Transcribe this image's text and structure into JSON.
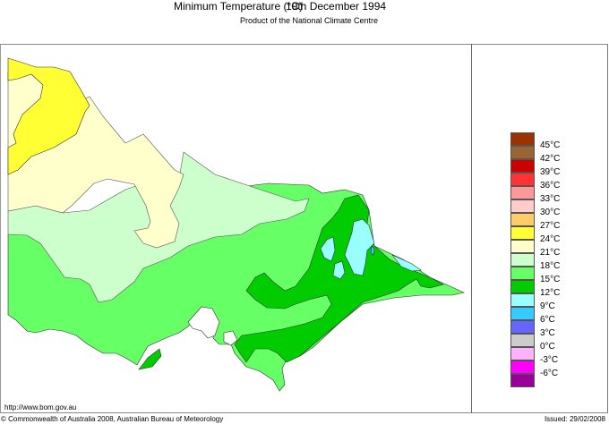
{
  "header": {
    "title": "Minimum Temperature (°C)",
    "date": "19th December 1994",
    "subtitle": "Product of the National Climate Centre"
  },
  "map": {
    "region": "Victoria, Australia",
    "background_color": "#ffffff",
    "zones": [
      {
        "label": "24-27°C",
        "color": "#ffff33"
      },
      {
        "label": "21-24°C",
        "color": "#ffffcc"
      },
      {
        "label": "18-21°C",
        "color": "#ccffcc"
      },
      {
        "label": "15-18°C",
        "color": "#66ff66"
      },
      {
        "label": "12-15°C",
        "color": "#00cc00"
      },
      {
        "label": "9-12°C",
        "color": "#99ffff"
      },
      {
        "label": "6-9°C",
        "color": "#33ccff"
      }
    ]
  },
  "legend": {
    "items": [
      {
        "label": "45°C",
        "color": "#993300"
      },
      {
        "label": "42°C",
        "color": "#996633"
      },
      {
        "label": "39°C",
        "color": "#cc0000"
      },
      {
        "label": "36°C",
        "color": "#ff3333"
      },
      {
        "label": "33°C",
        "color": "#ff9999"
      },
      {
        "label": "30°C",
        "color": "#ffcccc"
      },
      {
        "label": "27°C",
        "color": "#ffcc66"
      },
      {
        "label": "24°C",
        "color": "#ffff33"
      },
      {
        "label": "21°C",
        "color": "#ffffcc"
      },
      {
        "label": "18°C",
        "color": "#ccffcc"
      },
      {
        "label": "15°C",
        "color": "#66ff66"
      },
      {
        "label": "12°C",
        "color": "#00cc00"
      },
      {
        "label": "9°C",
        "color": "#99ffff"
      },
      {
        "label": "6°C",
        "color": "#33ccff"
      },
      {
        "label": "3°C",
        "color": "#6666ff"
      },
      {
        "label": "0°C",
        "color": "#cccccc"
      },
      {
        "label": "-3°C",
        "color": "#ffb3ff"
      },
      {
        "label": "-6°C",
        "color": "#ff00ff"
      },
      {
        "label": "",
        "color": "#990099"
      }
    ]
  },
  "footer": {
    "url": "http://www.bom.gov.au",
    "copyright": "© Commonwealth of Australia 2008, Australian Bureau of Meteorology",
    "issued": "Issued: 29/02/2008"
  }
}
